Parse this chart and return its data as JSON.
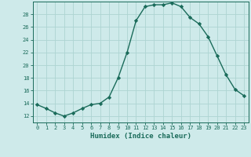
{
  "x": [
    0,
    1,
    2,
    3,
    4,
    5,
    6,
    7,
    8,
    9,
    10,
    11,
    12,
    13,
    14,
    15,
    16,
    17,
    18,
    19,
    20,
    21,
    22,
    23
  ],
  "y": [
    13.8,
    13.2,
    12.5,
    12.0,
    12.5,
    13.2,
    13.8,
    14.0,
    15.0,
    18.0,
    22.0,
    27.0,
    29.2,
    29.5,
    29.5,
    29.8,
    29.2,
    27.5,
    26.5,
    24.5,
    21.5,
    18.5,
    16.2,
    15.2
  ],
  "xlabel": "Humidex (Indice chaleur)",
  "xlim": [
    -0.5,
    23.5
  ],
  "ylim": [
    11,
    30
  ],
  "yticks": [
    12,
    14,
    16,
    18,
    20,
    22,
    24,
    26,
    28
  ],
  "xticks": [
    0,
    1,
    2,
    3,
    4,
    5,
    6,
    7,
    8,
    9,
    10,
    11,
    12,
    13,
    14,
    15,
    16,
    17,
    18,
    19,
    20,
    21,
    22,
    23
  ],
  "line_color": "#1a6b5a",
  "marker": "D",
  "marker_size": 2.2,
  "bg_color": "#ceeaea",
  "grid_color": "#add4d2",
  "label_color": "#1a6b5a",
  "tick_color": "#1a6b5a",
  "spine_color": "#1a6b5a",
  "tick_fontsize": 5.0,
  "xlabel_fontsize": 6.5
}
